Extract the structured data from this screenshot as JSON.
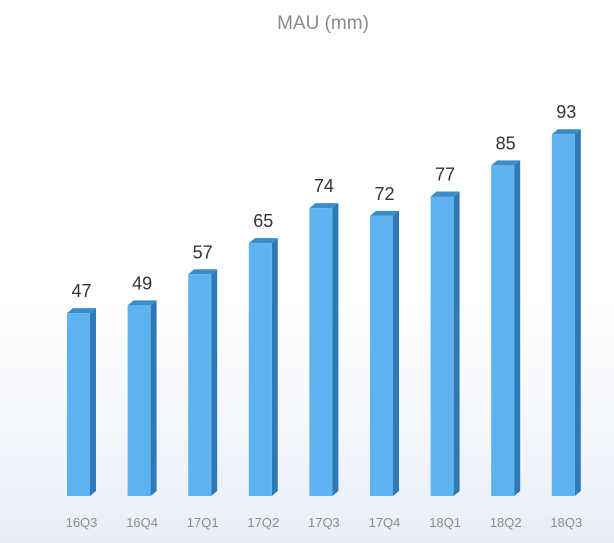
{
  "chart_data": {
    "type": "bar",
    "title": "MAU (mm)",
    "categories": [
      "16Q3",
      "16Q4",
      "17Q1",
      "17Q2",
      "17Q3",
      "17Q4",
      "18Q1",
      "18Q2",
      "18Q3"
    ],
    "values": [
      47,
      49,
      57,
      65,
      74,
      72,
      77,
      85,
      93
    ],
    "data_labels": [
      "47",
      "49",
      "57",
      "65",
      "74",
      "72",
      "77",
      "85",
      "93"
    ],
    "xlabel": "",
    "ylabel": "",
    "grid": false,
    "legend": "none",
    "style": "3d-bar"
  },
  "colors": {
    "bar_front": "#5cb3ef",
    "bar_side": "#2f7ab5",
    "bar_top": "#3a8dc8",
    "value_text": "#333333",
    "category_text": "#8c8c8c",
    "title_text": "#8a8a8a"
  }
}
